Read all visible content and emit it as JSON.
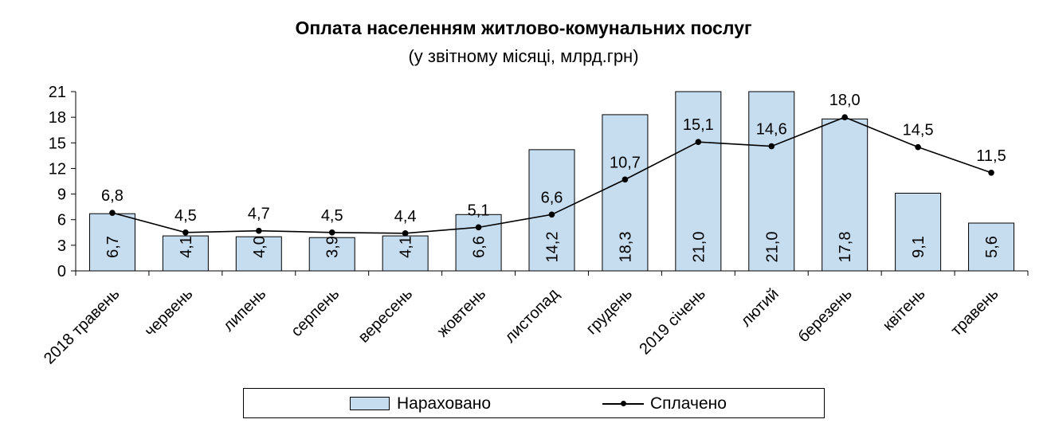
{
  "chart_data": {
    "type": "bar",
    "title": "Оплата населенням житлово-комунальних послуг",
    "subtitle": "(у звітному місяці, млрд.грн)",
    "categories": [
      "2018 травень",
      "червень",
      "липень",
      "серпень",
      "вересень",
      "жовтень",
      "листопад",
      "грудень",
      "2019 січень",
      "лютий",
      "березень",
      "квітень",
      "травень"
    ],
    "series": [
      {
        "name": "Нараховано",
        "kind": "bar",
        "values": [
          6.7,
          4.1,
          4.0,
          3.9,
          4.1,
          6.6,
          14.2,
          18.3,
          21.0,
          21.0,
          17.8,
          9.1,
          5.6
        ],
        "labels": [
          "6,7",
          "4,1",
          "4,0",
          "3,9",
          "4,1",
          "6,6",
          "14,2",
          "18,3",
          "21,0",
          "21,0",
          "17,8",
          "9,1",
          "5,6"
        ]
      },
      {
        "name": "Сплачено",
        "kind": "line",
        "values": [
          6.8,
          4.5,
          4.7,
          4.5,
          4.4,
          5.1,
          6.6,
          10.7,
          15.1,
          14.6,
          18.0,
          14.5,
          11.5
        ],
        "labels": [
          "6,8",
          "4,5",
          "4,7",
          "4,5",
          "4,4",
          "5,1",
          "6,6",
          "10,7",
          "15,1",
          "14,6",
          "18,0",
          "14,5",
          "11,5"
        ]
      }
    ],
    "yticks": [
      "0",
      "3",
      "6",
      "9",
      "12",
      "15",
      "18",
      "21"
    ],
    "ylim": [
      0,
      21
    ],
    "xlabel": "",
    "ylabel": "",
    "legend_position": "bottom",
    "colors": {
      "bar_fill": "#c6dcef",
      "bar_stroke": "#000000",
      "line": "#000000"
    }
  },
  "legend": {
    "accrued": "Нараховано",
    "paid": "Сплачено"
  }
}
